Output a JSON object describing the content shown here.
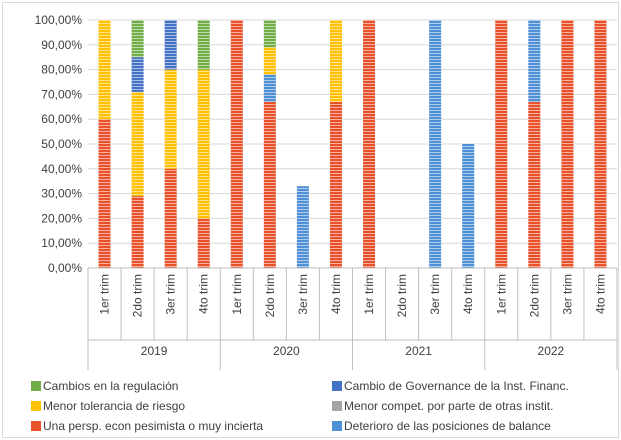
{
  "chart_data": {
    "type": "bar",
    "stacked": true,
    "title": "",
    "xlabel": "",
    "ylabel": "",
    "ylim": [
      0,
      100
    ],
    "y_ticks": [
      "0,00%",
      "10,00%",
      "20,00%",
      "30,00%",
      "40,00%",
      "50,00%",
      "60,00%",
      "70,00%",
      "80,00%",
      "90,00%",
      "100,00%"
    ],
    "grid": true,
    "legend_position": "bottom",
    "groups": [
      {
        "label": "2019",
        "categories": [
          "1er trim",
          "2do trim",
          "3er trim",
          "4to trim"
        ]
      },
      {
        "label": "2020",
        "categories": [
          "1er trim",
          "2do trim",
          "3er trim",
          "4to trim"
        ]
      },
      {
        "label": "2021",
        "categories": [
          "1er trim",
          "2do trim",
          "3er trim",
          "4to trim"
        ]
      },
      {
        "label": "2022",
        "categories": [
          "1er trim",
          "2do trim",
          "3er trim",
          "4to trim"
        ]
      }
    ],
    "series": [
      {
        "name": "Una persp. econ pesimista o muy incierta",
        "color": "#e8512a",
        "values": [
          60,
          29,
          40,
          20,
          100,
          67,
          0,
          67,
          100,
          0,
          0,
          0,
          100,
          67,
          100,
          100
        ]
      },
      {
        "name": "Deterioro de las posiciones de balance",
        "color": "#4f8fd6",
        "values": [
          0,
          0,
          0,
          0,
          0,
          11,
          33,
          0,
          0,
          0,
          100,
          50,
          0,
          33,
          0,
          0
        ]
      },
      {
        "name": "Menor compet. por parte de otras instit.",
        "color": "#a5a5a5",
        "values": [
          0,
          0,
          0,
          0,
          0,
          0,
          0,
          0,
          0,
          0,
          0,
          0,
          0,
          0,
          0,
          0
        ]
      },
      {
        "name": "Menor tolerancia de riesgo",
        "color": "#ffc000",
        "values": [
          40,
          42,
          40,
          60,
          0,
          11,
          0,
          33,
          0,
          0,
          0,
          0,
          0,
          0,
          0,
          0
        ]
      },
      {
        "name": "Cambio de Governance de la Inst. Financ.",
        "color": "#4472c4",
        "values": [
          0,
          14,
          20,
          0,
          0,
          0,
          0,
          0,
          0,
          0,
          0,
          0,
          0,
          0,
          0,
          0
        ]
      },
      {
        "name": "Cambios en la regulación",
        "color": "#70ad47",
        "values": [
          0,
          15,
          0,
          20,
          0,
          11,
          0,
          0,
          0,
          0,
          0,
          0,
          0,
          0,
          0,
          0
        ]
      }
    ]
  },
  "legend": [
    {
      "label": "Cambios en la regulación",
      "color": "#70ad47"
    },
    {
      "label": "Cambio de Governance de la Inst. Financ.",
      "color": "#4472c4"
    },
    {
      "label": "Menor tolerancia de riesgo",
      "color": "#ffc000"
    },
    {
      "label": "Menor compet. por parte de otras instit.",
      "color": "#a5a5a5"
    },
    {
      "label": "Una persp. econ pesimista o muy incierta",
      "color": "#e8512a"
    },
    {
      "label": "Deterioro de las posiciones de balance",
      "color": "#4f8fd6"
    }
  ]
}
